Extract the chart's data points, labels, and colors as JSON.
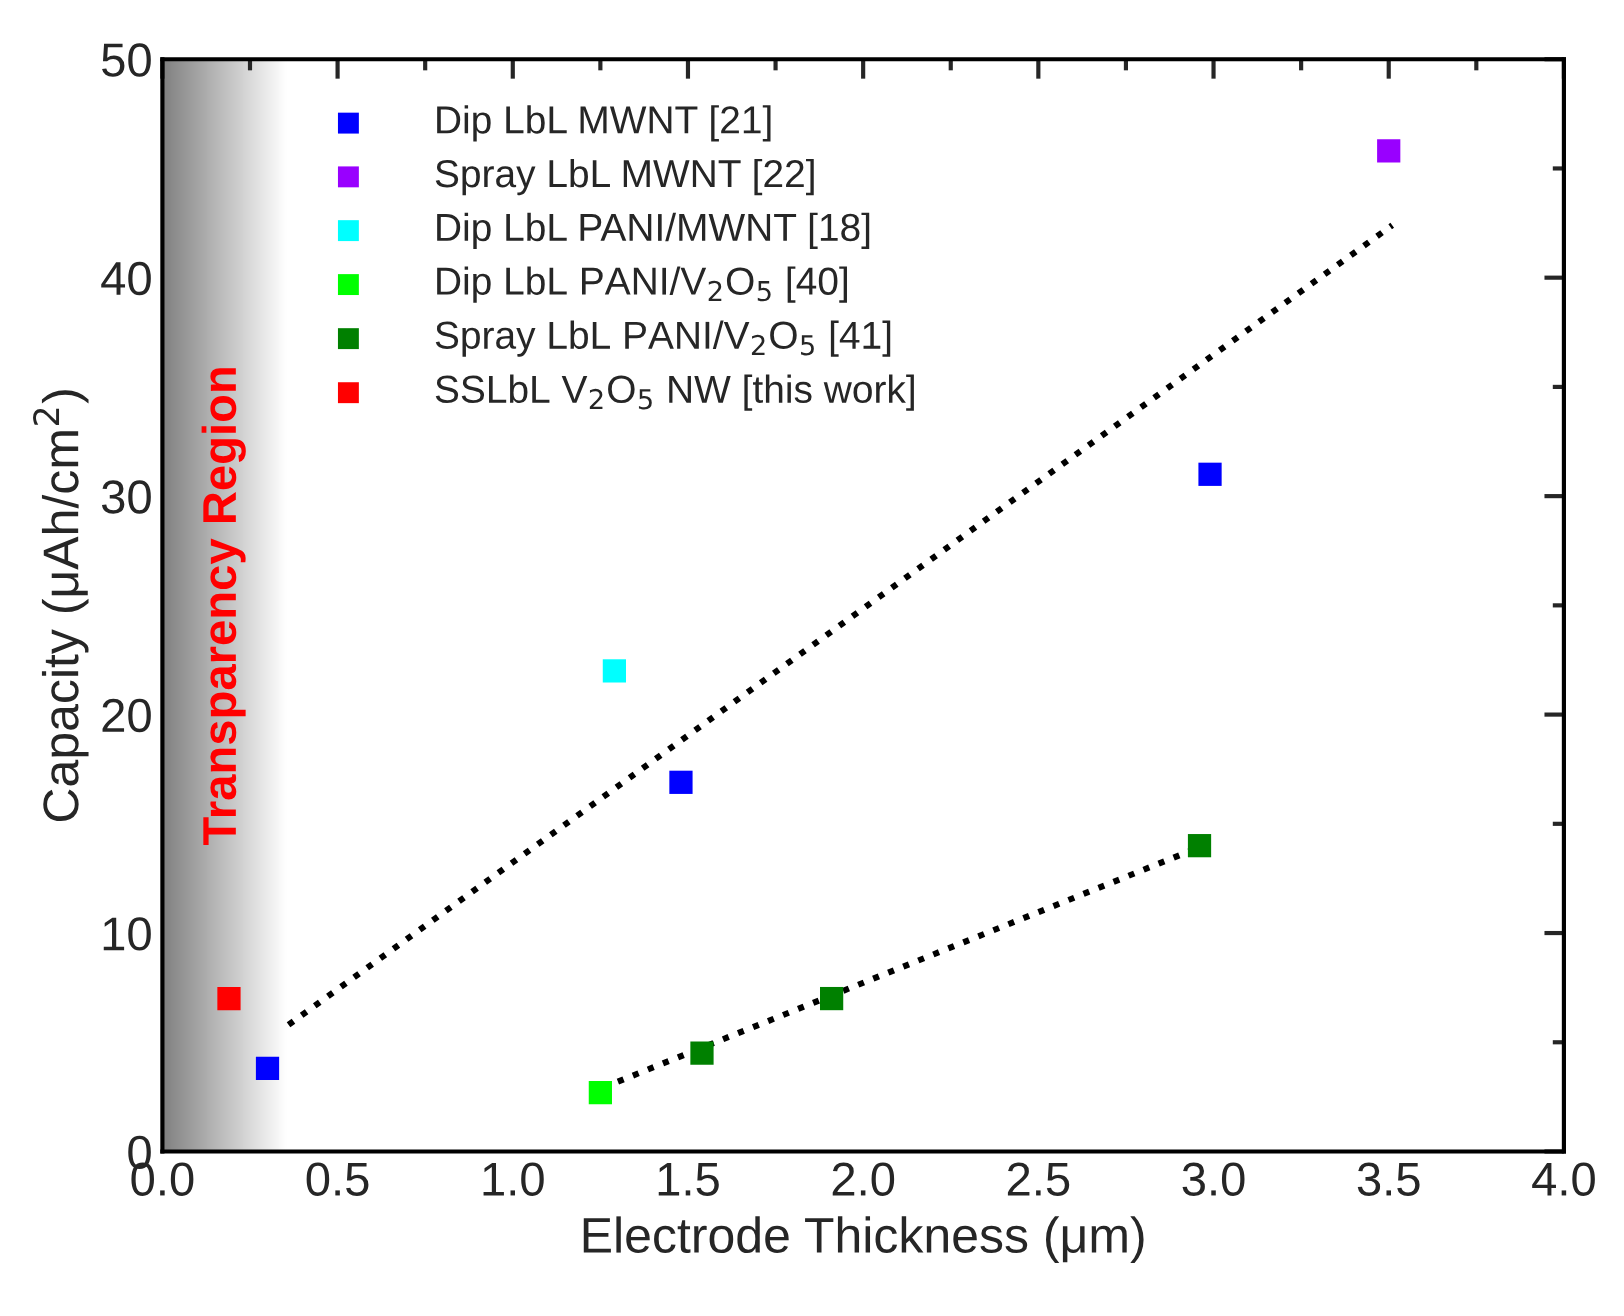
{
  "chart_data": {
    "type": "scatter",
    "xlabel": "Electrode Thickness (μm)",
    "ylabel": "Capacity (μAh/cm$^{2}$)",
    "xlim": [
      0,
      4
    ],
    "ylim": [
      0,
      50
    ],
    "xticks": [
      {
        "value": 0,
        "label": "0.0"
      },
      0.5,
      {
        "value": 1,
        "label": "1.0"
      },
      1.5,
      {
        "value": 2,
        "label": "2.0"
      },
      2.5,
      {
        "value": 3,
        "label": "3.0"
      },
      3.5,
      {
        "value": 4,
        "label": "4.0"
      }
    ],
    "yticks": [
      0,
      10,
      20,
      30,
      40,
      50
    ],
    "marker": "square",
    "grid": false,
    "legend": "top left",
    "bands": [
      {
        "axis": "x",
        "from": 0,
        "to": 0.35,
        "label": "Transparency Region",
        "color": "#808080"
      }
    ],
    "series": [
      {
        "name": "Dip LbL MWNT [21]",
        "color": "#0000ff",
        "x": [
          0.3,
          1.48,
          2.99
        ],
        "values": [
          3.8,
          16.9,
          31.0
        ]
      },
      {
        "name": "Spray LbL MWNT [22]",
        "color": "#9900ff",
        "x": [
          3.5
        ],
        "values": [
          45.8
        ]
      },
      {
        "name": "Dip LbL PANI/MWNT [18]",
        "color": "#00ffff",
        "x": [
          1.29
        ],
        "values": [
          22.0
        ]
      },
      {
        "name": "Dip LbL PANI/V$_{2}$O$_{5}$ [40]",
        "color": "#00ff00",
        "x": [
          1.25
        ],
        "values": [
          2.7
        ]
      },
      {
        "name": "Spray LbL PANI/V$_{2}$O$_{5}$ [41]",
        "color": "#008000",
        "x": [
          1.54,
          1.91,
          2.96
        ],
        "values": [
          4.5,
          7.0,
          14.0
        ]
      },
      {
        "name": "SSLbL V$_{2}$O$_{5}$ NW [this work]",
        "color": "#ff0000",
        "x": [
          0.19
        ],
        "values": [
          7.0
        ]
      },
      {
        "type": "line",
        "color": "#000000",
        "line_style": "dotted",
        "marker": "none",
        "x": [
          0.36,
          3.51
        ],
        "values": [
          5.8,
          42.4
        ]
      },
      {
        "type": "line",
        "color": "#000000",
        "line_style": "dotted",
        "marker": "none",
        "x": [
          1.3,
          2.94
        ],
        "values": [
          3.2,
          13.8
        ]
      }
    ]
  }
}
